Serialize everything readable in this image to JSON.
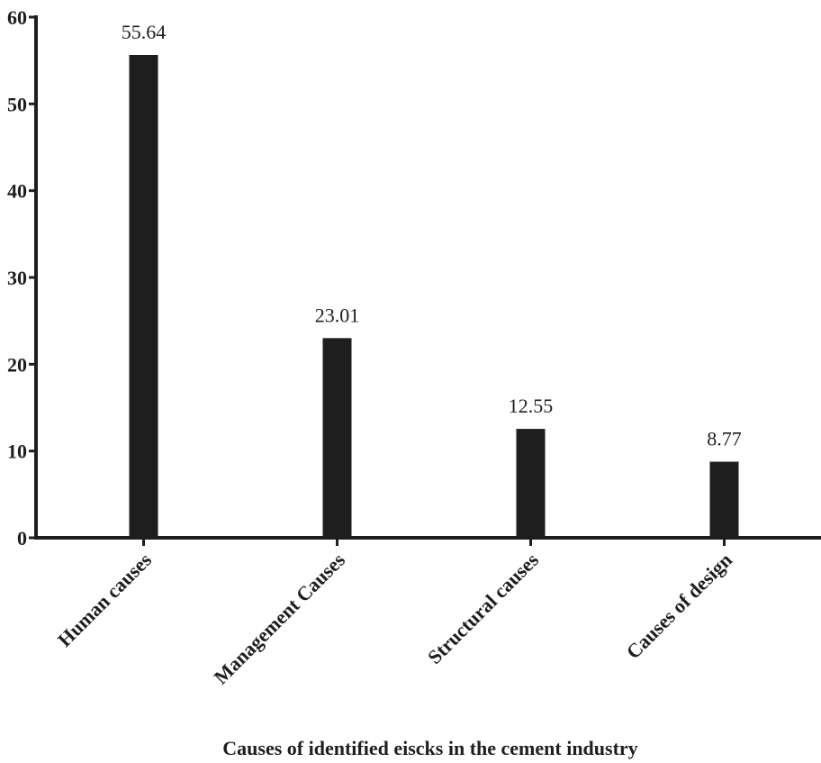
{
  "chart_data": {
    "type": "bar",
    "categories": [
      "Human causes",
      "Management Causes",
      "Structural causes",
      "Causes of design"
    ],
    "values": [
      55.64,
      23.01,
      12.55,
      8.77
    ],
    "data_labels": [
      "55.64",
      "23.01",
      "12.55",
      "8.77"
    ],
    "title": "",
    "xlabel": "Causes of identified eiscks in the cement industry",
    "ylabel": "",
    "ylim": [
      0,
      60
    ],
    "yticks": [
      0,
      10,
      20,
      30,
      40,
      50,
      60
    ],
    "grid": false,
    "legend": "none",
    "bar_color": "#1e1e1e",
    "axis_color": "#1e1e1e"
  }
}
